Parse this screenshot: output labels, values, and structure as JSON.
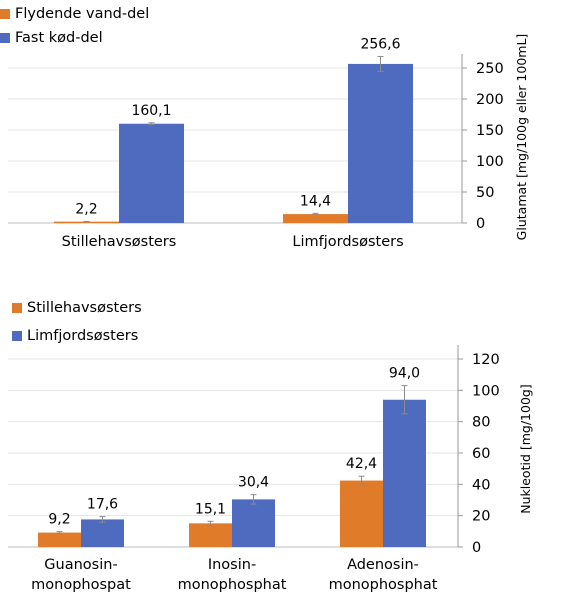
{
  "chart_data": [
    {
      "type": "bar",
      "categories": [
        "Stillehavsøsters",
        "Limfjordsøsters"
      ],
      "series": [
        {
          "name": "Flydende vand-del",
          "color": "#E07B2A",
          "values": [
            2.2,
            14.4
          ],
          "labels": [
            "2,2",
            "14,4"
          ],
          "errors": [
            0.3,
            1.2
          ]
        },
        {
          "name": "Fast kød-del",
          "color": "#4E6BC0",
          "values": [
            160.1,
            256.6
          ],
          "labels": [
            "160,1",
            "256,6"
          ],
          "errors": [
            1.5,
            12
          ]
        }
      ],
      "ylabel": "Glutamat [mg/100g eller 100mL]",
      "ylim": [
        0,
        250
      ],
      "yticks": [
        0,
        50,
        100,
        150,
        200,
        250
      ],
      "y_axis_side": "right",
      "legend_position": "top-left",
      "grid": true
    },
    {
      "type": "bar",
      "categories": [
        [
          "Guanosin-",
          "monophospat"
        ],
        [
          "Inosin-",
          "monophosphat"
        ],
        [
          "Adenosin-",
          "monophosphat"
        ]
      ],
      "series": [
        {
          "name": "Stillehavsøsters",
          "color": "#E07B2A",
          "values": [
            9.2,
            15.1,
            42.4
          ],
          "labels": [
            "9,2",
            "15,1",
            "42,4"
          ],
          "errors": [
            0.6,
            1.3,
            2.8
          ]
        },
        {
          "name": "Limfjordsøsters",
          "color": "#4E6BC0",
          "values": [
            17.6,
            30.4,
            94.0
          ],
          "labels": [
            "17,6",
            "30,4",
            "94,0"
          ],
          "errors": [
            1.8,
            3.0,
            9.0
          ]
        }
      ],
      "ylabel": "Nukleotid [mg/100g]",
      "ylim": [
        0,
        120
      ],
      "yticks": [
        0,
        20,
        40,
        60,
        80,
        100,
        120
      ],
      "y_axis_side": "right",
      "legend_position": "top-left",
      "grid": true
    }
  ]
}
